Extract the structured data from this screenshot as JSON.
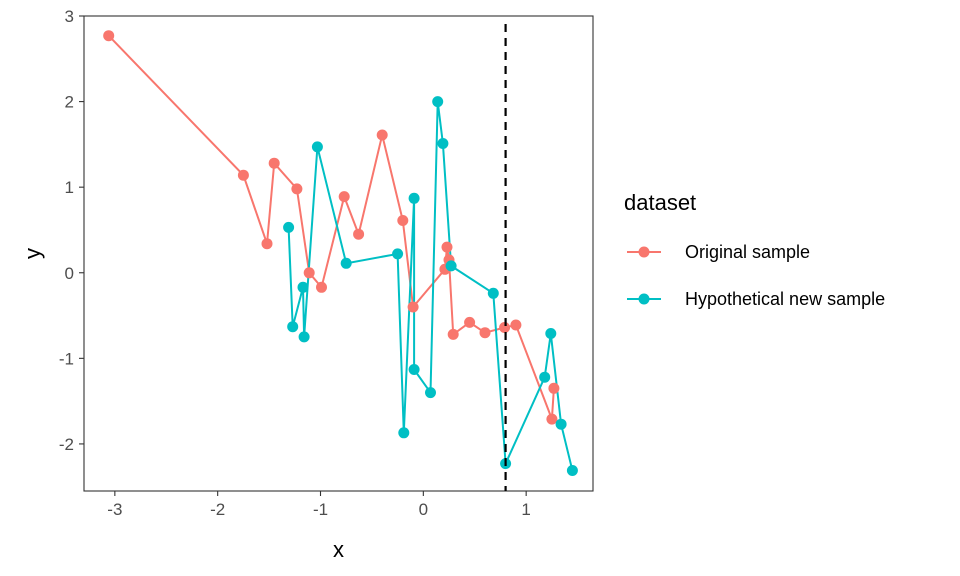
{
  "chart_data": {
    "type": "line",
    "xlabel": "x",
    "ylabel": "y",
    "xlim": [
      -3.3,
      1.65
    ],
    "ylim": [
      -2.55,
      3.0
    ],
    "x_ticks": [
      -3,
      -2,
      -1,
      0,
      1
    ],
    "y_ticks": [
      -2,
      -1,
      0,
      1,
      2,
      3
    ],
    "grid": false,
    "legend_position": "right",
    "legend_title": "dataset",
    "vline": {
      "x": 0.8,
      "style": "dashed",
      "color": "#000000"
    },
    "series": [
      {
        "name": "Original sample",
        "color": "#F8766D",
        "points": [
          [
            -3.06,
            2.77
          ],
          [
            -1.75,
            1.14
          ],
          [
            -1.52,
            0.34
          ],
          [
            -1.45,
            1.28
          ],
          [
            -1.23,
            0.98
          ],
          [
            -1.11,
            0.0
          ],
          [
            -0.99,
            -0.17
          ],
          [
            -0.77,
            0.89
          ],
          [
            -0.63,
            0.45
          ],
          [
            -0.4,
            1.61
          ],
          [
            -0.2,
            0.61
          ],
          [
            -0.1,
            -0.4
          ],
          [
            0.21,
            0.04
          ],
          [
            0.23,
            0.3
          ],
          [
            0.25,
            0.15
          ],
          [
            0.29,
            -0.72
          ],
          [
            0.45,
            -0.58
          ],
          [
            0.6,
            -0.7
          ],
          [
            0.79,
            -0.64
          ],
          [
            0.9,
            -0.61
          ],
          [
            1.25,
            -1.71
          ],
          [
            1.27,
            -1.35
          ]
        ]
      },
      {
        "name": "Hypothetical new sample",
        "color": "#00BFC4",
        "points": [
          [
            -1.31,
            0.53
          ],
          [
            -1.27,
            -0.63
          ],
          [
            -1.17,
            -0.17
          ],
          [
            -1.16,
            -0.75
          ],
          [
            -1.03,
            1.47
          ],
          [
            -0.75,
            0.11
          ],
          [
            -0.25,
            0.22
          ],
          [
            -0.19,
            -1.87
          ],
          [
            -0.09,
            0.87
          ],
          [
            -0.09,
            -1.13
          ],
          [
            0.07,
            -1.4
          ],
          [
            0.14,
            2.0
          ],
          [
            0.19,
            1.51
          ],
          [
            0.27,
            0.08
          ],
          [
            0.68,
            -0.24
          ],
          [
            0.8,
            -2.23
          ],
          [
            1.18,
            -1.22
          ],
          [
            1.24,
            -0.71
          ],
          [
            1.34,
            -1.77
          ],
          [
            1.45,
            -2.31
          ]
        ]
      }
    ]
  }
}
